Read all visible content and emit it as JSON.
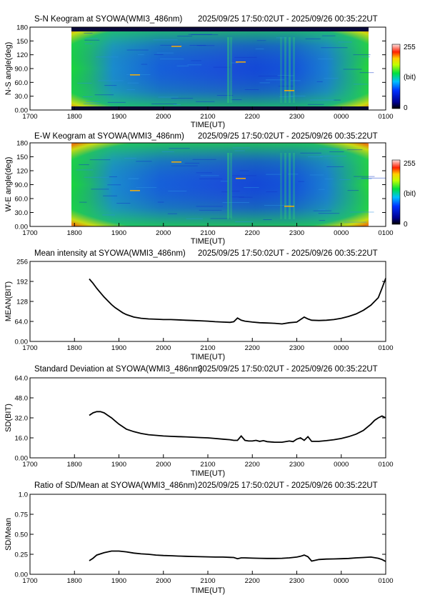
{
  "time_range": "2025/09/25 17:50:02UT - 2025/09/26 00:35:22UT",
  "time_ticks": [
    "1700",
    "1800",
    "1900",
    "2000",
    "2100",
    "2200",
    "2300",
    "0000",
    "0100"
  ],
  "colors": {
    "line": "#000000",
    "axis": "#000000"
  },
  "chart_data": [
    {
      "type": "heatmap",
      "title": "S-N Keogram at SYOWA(WMI3_486nm)",
      "xlabel": "TIME(UT)",
      "ylabel": "N-S angle(deg)",
      "xlim": [
        0,
        480
      ],
      "ylim": [
        0,
        180
      ],
      "y_ticks": [
        "0.00",
        "30.0",
        "60.0",
        "90.0",
        "120",
        "150",
        "180"
      ],
      "colorbar": {
        "min_label": "0",
        "max_label": "255",
        "unit_label": "(bit)",
        "range": [
          0,
          255
        ]
      },
      "grid": false
    },
    {
      "type": "heatmap",
      "title": "E-W Keogram at SYOWA(WMI3_486nm)",
      "xlabel": "TIME(UT)",
      "ylabel": "W-E angle(deg)",
      "xlim": [
        0,
        480
      ],
      "ylim": [
        0,
        180
      ],
      "y_ticks": [
        "0.00",
        "30.0",
        "60.0",
        "90.0",
        "120",
        "150",
        "180"
      ],
      "colorbar": {
        "min_label": "0",
        "max_label": "255",
        "unit_label": "(bit)",
        "range": [
          0,
          255
        ]
      },
      "grid": false
    },
    {
      "type": "line",
      "title": "Mean intensity at SYOWA(WMI3_486nm)",
      "xlabel": "TIME(UT)",
      "ylabel": "MEAN(BIT)",
      "xlim": [
        0,
        480
      ],
      "ylim": [
        0,
        256
      ],
      "y_ticks": [
        "0.00",
        "64.0",
        "128",
        "192",
        "256"
      ],
      "grid": false,
      "series": [
        {
          "x": [
            80,
            85,
            90,
            95,
            100,
            105,
            110,
            115,
            120,
            125,
            130,
            135,
            140,
            150,
            160,
            170,
            180,
            190,
            200,
            210,
            220,
            230,
            240,
            250,
            260,
            270,
            275,
            280,
            285,
            290,
            300,
            310,
            320,
            330,
            340,
            350,
            360,
            365,
            370,
            375,
            380,
            390,
            400,
            410,
            420,
            430,
            440,
            450,
            460,
            470,
            475,
            480
          ],
          "y": [
            200,
            186,
            170,
            156,
            142,
            130,
            118,
            108,
            100,
            92,
            86,
            82,
            78,
            74,
            72,
            71,
            70,
            70,
            69,
            68,
            67,
            66,
            65,
            63,
            62,
            61,
            63,
            75,
            68,
            65,
            62,
            60,
            59,
            58,
            56,
            60,
            62,
            70,
            78,
            72,
            68,
            67,
            68,
            70,
            74,
            80,
            88,
            100,
            116,
            140,
            170,
            202
          ]
        }
      ]
    },
    {
      "type": "line",
      "title": "Standard Deviation at SYOWA(WMI3_486nm)",
      "xlabel": "TIME(UT)",
      "ylabel": "SD(BIT)",
      "xlim": [
        0,
        480
      ],
      "ylim": [
        0,
        64
      ],
      "y_ticks": [
        "0.00",
        "16.0",
        "32.0",
        "48.0",
        "64.0"
      ],
      "grid": false,
      "series": [
        {
          "x": [
            80,
            85,
            90,
            95,
            100,
            105,
            110,
            115,
            120,
            125,
            130,
            140,
            150,
            160,
            170,
            180,
            190,
            200,
            210,
            220,
            230,
            240,
            250,
            260,
            270,
            275,
            280,
            285,
            290,
            295,
            300,
            305,
            310,
            315,
            320,
            330,
            340,
            350,
            355,
            360,
            365,
            370,
            375,
            380,
            390,
            400,
            410,
            420,
            430,
            440,
            450,
            460,
            465,
            470,
            475,
            480
          ],
          "y": [
            34,
            36,
            37,
            37,
            36,
            34,
            32,
            29.5,
            27,
            25,
            23,
            21,
            19.5,
            18.5,
            18,
            17.5,
            17.2,
            17,
            16.8,
            16.5,
            16.2,
            16,
            15.5,
            15,
            14.5,
            14,
            14,
            17.5,
            14,
            13.5,
            13.5,
            14,
            13.2,
            13.8,
            13,
            12.5,
            12.5,
            13.5,
            13,
            15,
            16,
            14,
            17,
            13.2,
            13.2,
            13.8,
            14.5,
            15.5,
            17,
            19,
            22,
            27,
            30,
            32,
            33.5,
            32
          ]
        }
      ]
    },
    {
      "type": "line",
      "title": "Ratio of SD/Mean at SYOWA(WMI3_486nm)",
      "xlabel": "TIME(UT)",
      "ylabel": "SD/Mean",
      "xlim": [
        0,
        480
      ],
      "ylim": [
        0,
        1.0
      ],
      "y_ticks": [
        "0.00",
        "0.25",
        "0.50",
        "0.75",
        "1.0"
      ],
      "grid": false,
      "series": [
        {
          "x": [
            80,
            85,
            90,
            100,
            110,
            120,
            130,
            140,
            150,
            160,
            170,
            180,
            190,
            200,
            210,
            220,
            230,
            240,
            250,
            260,
            270,
            275,
            280,
            285,
            290,
            300,
            310,
            320,
            330,
            340,
            350,
            360,
            365,
            370,
            375,
            380,
            390,
            400,
            410,
            420,
            430,
            440,
            450,
            460,
            470,
            475,
            480
          ],
          "y": [
            0.17,
            0.2,
            0.24,
            0.27,
            0.29,
            0.29,
            0.28,
            0.265,
            0.255,
            0.25,
            0.24,
            0.235,
            0.232,
            0.228,
            0.225,
            0.222,
            0.22,
            0.218,
            0.215,
            0.215,
            0.212,
            0.21,
            0.195,
            0.205,
            0.205,
            0.202,
            0.2,
            0.198,
            0.198,
            0.2,
            0.205,
            0.215,
            0.225,
            0.24,
            0.22,
            0.165,
            0.185,
            0.19,
            0.192,
            0.195,
            0.198,
            0.205,
            0.21,
            0.215,
            0.2,
            0.185,
            0.16
          ]
        }
      ]
    }
  ]
}
